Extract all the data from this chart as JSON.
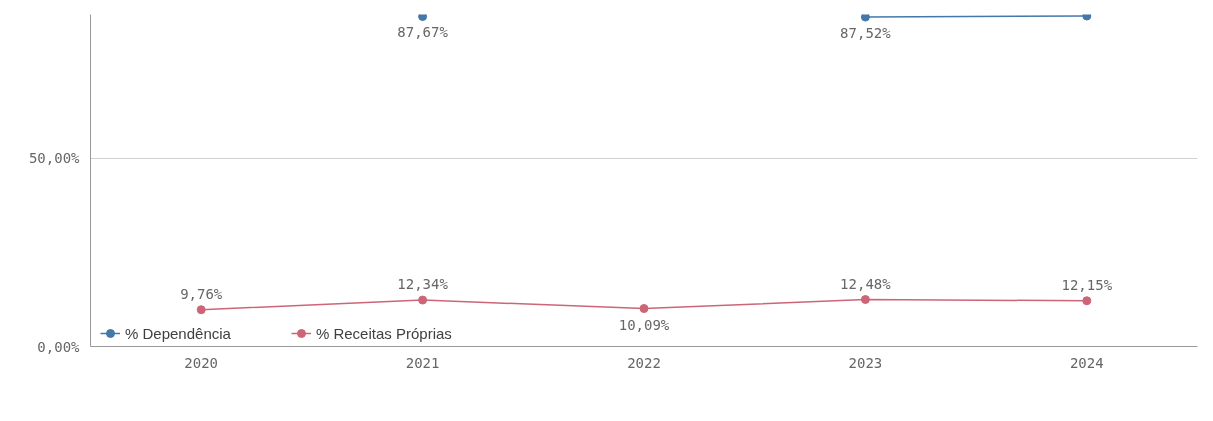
{
  "chart_data": {
    "type": "line",
    "categories": [
      "2020",
      "2021",
      "2022",
      "2023",
      "2024"
    ],
    "series": [
      {
        "name": "% Dependência",
        "color": "#4477aa",
        "values": [
          null,
          87.67,
          null,
          87.52,
          87.8
        ],
        "value_labels": [
          null,
          "87,67%",
          null,
          "87,52%",
          null
        ]
      },
      {
        "name": "% Receitas Próprias",
        "color": "#cc6677",
        "values": [
          9.76,
          12.34,
          10.09,
          12.48,
          12.15
        ],
        "value_labels": [
          "9,76%",
          "12,34%",
          "10,09%",
          "12,48%",
          "12,15%"
        ]
      }
    ],
    "ylim": [
      0,
      88.2
    ],
    "yticks": [
      {
        "value": 0,
        "label": "0,00%"
      },
      {
        "value": 50,
        "label": "50,00%"
      }
    ],
    "grid": "y",
    "legend": "bottom left",
    "marker": "circle",
    "line_style": "solid"
  }
}
